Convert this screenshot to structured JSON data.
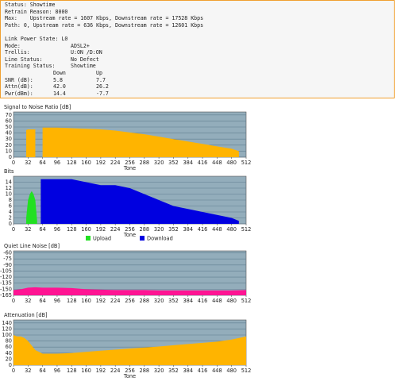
{
  "status": {
    "lines": [
      "Status: Showtime",
      "Retrain Reason: 8000",
      "Max:    Upstream rate = 1607 Kbps, Downstream rate = 17528 Kbps",
      "Path: 0, Upstream rate = 636 Kbps, Downstream rate = 12601 Kbps",
      "Link Power State: L0"
    ],
    "rows": [
      [
        "Mode:",
        "ADSL2+"
      ],
      [
        "Trellis:",
        "U:ON /D:ON"
      ],
      [
        "Line Status:",
        "No Defect"
      ],
      [
        "Training Status:",
        "Showtime"
      ]
    ],
    "table": {
      "header": [
        "Down",
        "Up"
      ],
      "rows": [
        [
          "SNR (dB):",
          "5.8",
          "7.7"
        ],
        [
          "Attn(dB):",
          "42.0",
          "26.2"
        ],
        [
          "Pwr(dBm):",
          "14.4",
          "-7.7"
        ]
      ]
    }
  },
  "chart_data": [
    {
      "type": "area",
      "title": "Signal to Noise Ratio [dB]",
      "x_label": "Tone",
      "grid": true,
      "color": "#ffb400",
      "x": [
        28,
        32,
        40,
        48,
        56,
        64,
        80,
        96,
        128,
        160,
        192,
        224,
        256,
        288,
        320,
        352,
        384,
        416,
        448,
        480,
        496
      ],
      "values": [
        45,
        46,
        46,
        46,
        null,
        49,
        49,
        49,
        48,
        47,
        46,
        44,
        41,
        38,
        34,
        30,
        26,
        22,
        18,
        14,
        10
      ],
      "xlim": [
        0,
        512
      ],
      "xticks": [
        0,
        32,
        64,
        96,
        128,
        160,
        192,
        224,
        256,
        288,
        320,
        352,
        384,
        416,
        448,
        480,
        512
      ],
      "ylim": [
        0,
        75
      ],
      "yticks": [
        0,
        10,
        20,
        30,
        40,
        50,
        60,
        70
      ]
    },
    {
      "type": "area",
      "title": "Bits",
      "x_label": "Tone",
      "grid": true,
      "x": [
        28,
        32,
        36,
        40,
        44,
        48,
        52,
        56,
        60,
        64,
        96,
        128,
        160,
        192,
        224,
        256,
        288,
        320,
        352,
        384,
        416,
        448,
        480,
        496,
        504
      ],
      "series": [
        {
          "name": "Upload",
          "color": "#22e022",
          "values": [
            2,
            8,
            10,
            11,
            10,
            8,
            1,
            null,
            null,
            null,
            null,
            null,
            null,
            null,
            null,
            null,
            null,
            null,
            null,
            null,
            null,
            null,
            null,
            null,
            null
          ]
        },
        {
          "name": "Download",
          "color": "#0000e0",
          "values": [
            null,
            null,
            null,
            null,
            null,
            null,
            null,
            null,
            15,
            15,
            15,
            15,
            14,
            13,
            13,
            12,
            10,
            8,
            6,
            5,
            4,
            3,
            2,
            1,
            null
          ]
        }
      ],
      "xlim": [
        0,
        512
      ],
      "xticks": [
        0,
        32,
        64,
        96,
        128,
        160,
        192,
        224,
        256,
        288,
        320,
        352,
        384,
        416,
        448,
        480,
        512
      ],
      "ylim": [
        0,
        16
      ],
      "yticks": [
        0,
        2,
        4,
        6,
        8,
        10,
        12,
        14
      ]
    },
    {
      "type": "area",
      "title": "Quiet Line Noise [dB]",
      "grid": true,
      "color": "#ff1493",
      "x": [
        0,
        16,
        32,
        48,
        64,
        96,
        128,
        160,
        192,
        224,
        256,
        288,
        320,
        352,
        384,
        416,
        448,
        480,
        512
      ],
      "values": [
        -152,
        -150,
        -146,
        -145,
        -146,
        -146,
        -147,
        -150,
        -151,
        -152,
        -152,
        -152,
        -153,
        -153,
        -153,
        -153,
        -153,
        -153,
        -152
      ],
      "xlim": [
        0,
        512
      ],
      "xticks": [
        0,
        32,
        64,
        96,
        128,
        160,
        192,
        224,
        256,
        288,
        320,
        352,
        384,
        416,
        448,
        480,
        512
      ],
      "ylim": [
        -165,
        -55
      ],
      "yticks": [
        -60,
        -75,
        -90,
        -105,
        -120,
        -135,
        -150,
        -165
      ]
    },
    {
      "type": "area",
      "title": "Attenuation [dB]",
      "x_label": "Tone",
      "grid": true,
      "color": "#ffb400",
      "x": [
        0,
        8,
        16,
        24,
        32,
        48,
        64,
        96,
        128,
        192,
        256,
        320,
        384,
        448,
        480,
        512
      ],
      "values": [
        100,
        95,
        95,
        90,
        80,
        50,
        38,
        38,
        40,
        48,
        55,
        62,
        70,
        78,
        85,
        95
      ],
      "xlim": [
        0,
        512
      ],
      "xticks": [
        0,
        32,
        64,
        96,
        128,
        160,
        192,
        224,
        256,
        288,
        320,
        352,
        384,
        416,
        448,
        480,
        512
      ],
      "ylim": [
        0,
        150
      ],
      "yticks": [
        0,
        20,
        40,
        60,
        80,
        100,
        120,
        140
      ]
    }
  ]
}
